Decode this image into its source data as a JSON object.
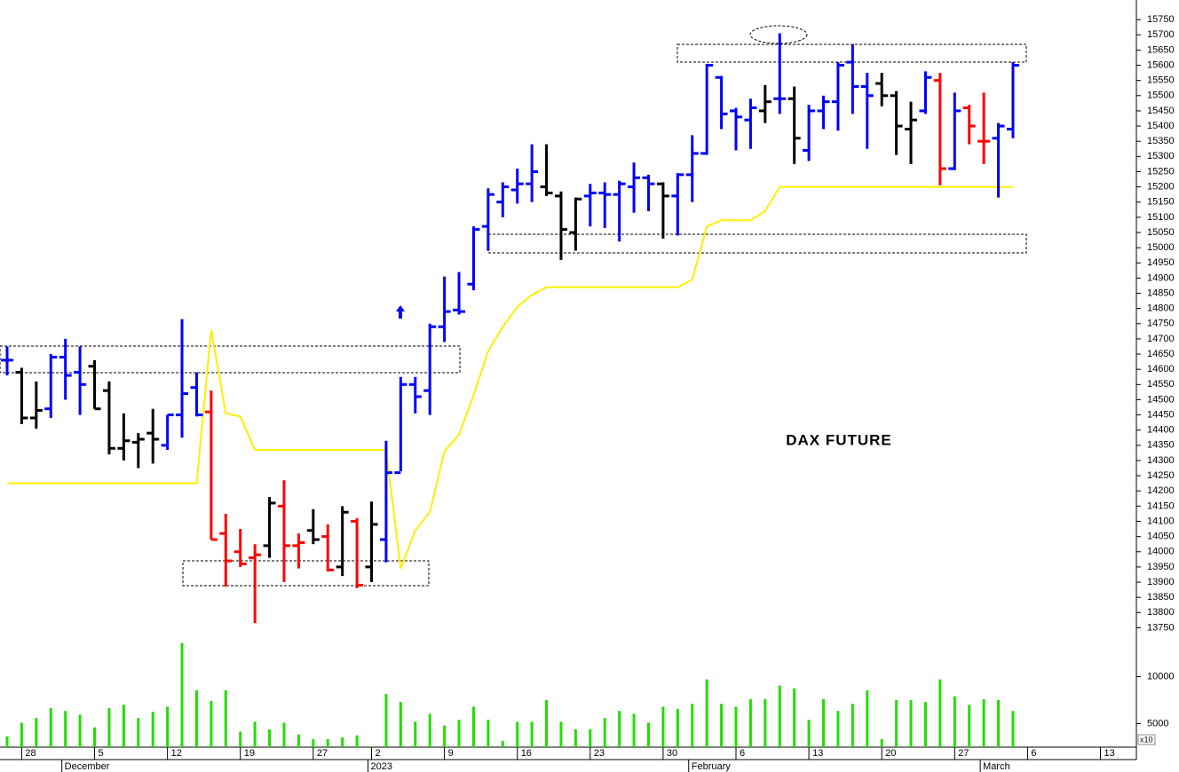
{
  "chart_data": {
    "type": "ohlc",
    "title": "DAX FUTURE",
    "categories": [
      null,
      "28",
      null,
      null,
      null,
      null,
      "5",
      null,
      null,
      null,
      null,
      "12",
      null,
      null,
      null,
      null,
      "19",
      null,
      null,
      null,
      null,
      "27",
      null,
      null,
      null,
      "2",
      null,
      null,
      null,
      null,
      "9",
      null,
      null,
      null,
      null,
      "16",
      null,
      null,
      null,
      null,
      "23",
      null,
      null,
      null,
      null,
      "30",
      null,
      null,
      null,
      null,
      "6",
      null,
      null,
      null,
      null,
      "13",
      null,
      null,
      null,
      null,
      "20",
      null,
      null,
      null,
      null,
      "27",
      null,
      null,
      null,
      null,
      "6",
      null,
      null,
      null,
      null,
      "13",
      null,
      null
    ],
    "months": [
      null,
      null,
      null,
      null,
      "December",
      null,
      null,
      null,
      null,
      null,
      null,
      null,
      null,
      null,
      null,
      null,
      null,
      null,
      null,
      null,
      null,
      null,
      null,
      null,
      null,
      "2023",
      null,
      null,
      null,
      null,
      null,
      null,
      null,
      null,
      null,
      null,
      null,
      null,
      null,
      null,
      null,
      null,
      null,
      null,
      null,
      null,
      null,
      "February",
      null,
      null,
      null,
      null,
      null,
      null,
      null,
      null,
      null,
      null,
      null,
      null,
      null,
      null,
      null,
      null,
      null,
      null,
      null,
      "March",
      null,
      null,
      null,
      null,
      null,
      null,
      null,
      null,
      null,
      null
    ],
    "open": [
      14630,
      14590,
      14440,
      14470,
      14640,
      14590,
      14610,
      14530,
      14340,
      14360,
      14390,
      14350,
      14450,
      14540,
      14460,
      14060,
      14000,
      13980,
      14020,
      14150,
      14020,
      14070,
      14050,
      13950,
      14100,
      13950,
      14040,
      14260,
      14550,
      14530,
      14740,
      14795,
      14880,
      15070,
      15150,
      15190,
      15210,
      15200,
      15170,
      15050,
      15170,
      15180,
      15175,
      15200,
      15230,
      15210,
      15170,
      15240,
      15310,
      15560,
      15450,
      15420,
      15450,
      15490,
      15490,
      15320,
      15450,
      15480,
      15610,
      15530,
      15540,
      15500,
      15390,
      15450,
      15550,
      15260,
      15460,
      15350,
      15360,
      15390,
      null,
      null,
      null,
      null,
      null,
      null,
      null,
      null
    ],
    "high": [
      14675,
      14605,
      14560,
      14650,
      14700,
      14675,
      14630,
      14560,
      14455,
      14390,
      14470,
      14450,
      14765,
      14590,
      14530,
      14125,
      14075,
      14025,
      14180,
      14235,
      14060,
      14140,
      14090,
      14150,
      14110,
      14165,
      14365,
      14575,
      14575,
      14750,
      14905,
      14920,
      15070,
      15195,
      15215,
      15260,
      15340,
      15340,
      15185,
      15165,
      15210,
      15215,
      15220,
      15280,
      15240,
      15215,
      15245,
      15370,
      15605,
      15565,
      15460,
      15490,
      15535,
      15705,
      15530,
      15470,
      15500,
      15610,
      15670,
      15575,
      15575,
      15515,
      15480,
      15580,
      15575,
      15510,
      15470,
      15510,
      15410,
      15610,
      null,
      null,
      null,
      null,
      null,
      null,
      null,
      null
    ],
    "low": [
      14580,
      14420,
      14405,
      14440,
      14500,
      14450,
      14470,
      14320,
      14300,
      14275,
      14290,
      14335,
      14375,
      14445,
      14040,
      13885,
      13950,
      13765,
      13980,
      13900,
      13945,
      14025,
      13935,
      13920,
      13880,
      13900,
      13965,
      14265,
      14455,
      14450,
      14690,
      14780,
      14860,
      14990,
      15100,
      15145,
      15150,
      15170,
      14960,
      14990,
      15070,
      15065,
      15020,
      15115,
      15120,
      15030,
      15040,
      15150,
      15305,
      15390,
      15320,
      15325,
      15410,
      15440,
      15275,
      15285,
      15390,
      15385,
      15440,
      15325,
      15465,
      15305,
      15275,
      15440,
      15205,
      15255,
      15340,
      15275,
      15165,
      15360,
      null,
      null,
      null,
      null,
      null,
      null,
      null,
      null
    ],
    "close": [
      14630,
      14440,
      14465,
      14640,
      14580,
      14550,
      14470,
      14340,
      14365,
      14370,
      14370,
      14450,
      14520,
      14450,
      14040,
      13970,
      13960,
      13990,
      14160,
      14020,
      14030,
      14040,
      13940,
      14130,
      13890,
      14090,
      14260,
      14550,
      14510,
      14740,
      14790,
      14790,
      15060,
      15175,
      15200,
      15210,
      15250,
      15180,
      15060,
      15160,
      15180,
      15175,
      15210,
      15230,
      15210,
      15170,
      15240,
      15310,
      15600,
      15440,
      15430,
      15460,
      15480,
      15490,
      15360,
      15450,
      15480,
      15600,
      15530,
      15500,
      15500,
      15400,
      15420,
      15560,
      15260,
      15450,
      15400,
      15350,
      15400,
      15600,
      null,
      null,
      null,
      null,
      null,
      null,
      null,
      null
    ],
    "bar_colors": [
      "#0000ff",
      "#000000",
      "#000000",
      "#0000ff",
      "#0000ff",
      "#0000ff",
      "#000000",
      "#000000",
      "#000000",
      "#000000",
      "#000000",
      "#0000ff",
      "#0000ff",
      "#0000ff",
      "#ff0000",
      "#ff0000",
      "#ff0000",
      "#ff0000",
      "#000000",
      "#ff0000",
      "#ff0000",
      "#000000",
      "#ff0000",
      "#000000",
      "#ff0000",
      "#000000",
      "#0000ff",
      "#0000ff",
      "#0000ff",
      "#0000ff",
      "#0000ff",
      "#0000ff",
      "#0000ff",
      "#0000ff",
      "#0000ff",
      "#0000ff",
      "#0000ff",
      "#000000",
      "#000000",
      "#000000",
      "#0000ff",
      "#0000ff",
      "#0000ff",
      "#0000ff",
      "#0000ff",
      "#000000",
      "#0000ff",
      "#0000ff",
      "#0000ff",
      "#0000ff",
      "#0000ff",
      "#0000ff",
      "#000000",
      "#0000ff",
      "#000000",
      "#0000ff",
      "#0000ff",
      "#0000ff",
      "#0000ff",
      "#0000ff",
      "#000000",
      "#000000",
      "#000000",
      "#0000ff",
      "#ff0000",
      "#0000ff",
      "#ff0000",
      "#ff0000",
      "#0000ff",
      "#0000ff",
      null,
      null,
      null,
      null,
      null,
      null,
      null,
      null
    ],
    "stop_line": {
      "color": "#ffee00",
      "values": [
        14225,
        14225,
        14225,
        14225,
        14225,
        14225,
        14225,
        14225,
        14225,
        14225,
        14225,
        14225,
        14225,
        14225,
        14730,
        14455,
        14445,
        14335,
        14335,
        14335,
        14335,
        14335,
        14335,
        14335,
        14335,
        14335,
        14335,
        13945,
        14070,
        14130,
        14330,
        14385,
        14515,
        14660,
        14740,
        14805,
        14845,
        14870,
        14870,
        14870,
        14870,
        14870,
        14870,
        14870,
        14870,
        14870,
        14870,
        14895,
        15070,
        15090,
        15090,
        15090,
        15120,
        15200,
        15200,
        15200,
        15200,
        15200,
        15200,
        15200,
        15200,
        15200,
        15200,
        15200,
        15200,
        15200,
        15200,
        15200,
        15200,
        15200,
        null,
        null,
        null,
        null,
        null,
        null,
        null,
        null
      ]
    },
    "ylim": [
      13725,
      15800
    ],
    "yticks": [
      13750,
      13800,
      13850,
      13900,
      13950,
      14000,
      14050,
      14100,
      14150,
      14200,
      14250,
      14300,
      14350,
      14400,
      14450,
      14500,
      14550,
      14600,
      14650,
      14700,
      14750,
      14800,
      14850,
      14900,
      14950,
      15000,
      15050,
      15100,
      15150,
      15200,
      15250,
      15300,
      15350,
      15400,
      15450,
      15500,
      15550,
      15600,
      15650,
      15700,
      15750
    ],
    "volume": {
      "color": "#22dd00",
      "scale_label": "x10",
      "ylim": [
        2500,
        14000
      ],
      "yticks": [
        5000,
        10000
      ],
      "values": [
        3650,
        5100,
        5600,
        6650,
        6350,
        5950,
        4600,
        6650,
        7000,
        5600,
        6250,
        6800,
        13550,
        8550,
        7400,
        8550,
        4150,
        5200,
        4400,
        5100,
        3850,
        3350,
        3350,
        3550,
        3750,
        2600,
        8150,
        7300,
        5200,
        6050,
        4800,
        5400,
        6800,
        5400,
        3150,
        5200,
        5200,
        7500,
        5200,
        4400,
        4400,
        5600,
        6350,
        6050,
        5100,
        6800,
        6550,
        7100,
        9700,
        7100,
        6800,
        7600,
        7600,
        9050,
        8750,
        5400,
        7600,
        6350,
        7100,
        8550,
        3350,
        7500,
        7500,
        7300,
        9700,
        7900,
        7000,
        7600,
        7500,
        6350,
        null,
        null,
        null,
        null,
        null,
        null,
        null,
        null
      ]
    }
  }
}
